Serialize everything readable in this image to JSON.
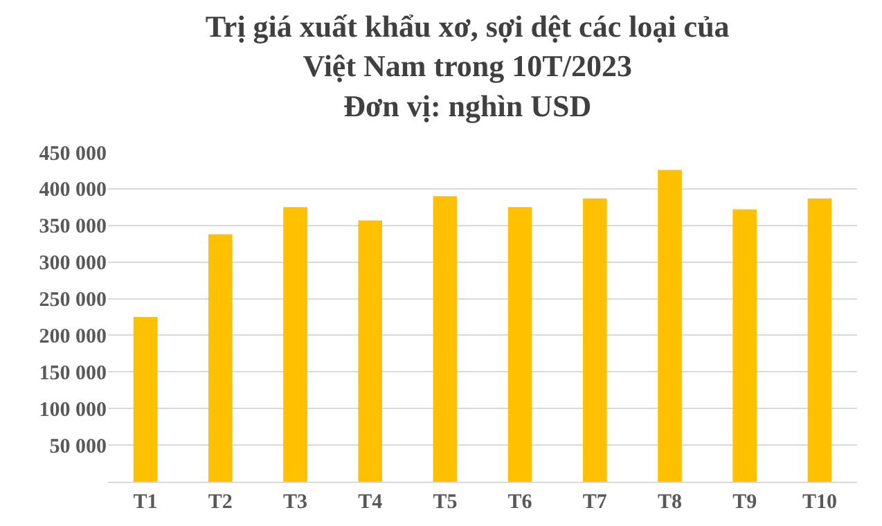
{
  "chart_data": {
    "type": "bar",
    "title": "Trị giá xuất khẩu xơ, sợi dệt các loại của\nViệt Nam trong 10T/2023\nĐơn vị: nghìn USD",
    "categories": [
      "T1",
      "T2",
      "T3",
      "T4",
      "T5",
      "T6",
      "T7",
      "T8",
      "T9",
      "T10"
    ],
    "values": [
      225000,
      338000,
      375000,
      357000,
      390000,
      375000,
      387000,
      426000,
      372000,
      387000
    ],
    "color": "#ffc000",
    "ylim": [
      0,
      450000
    ],
    "yticks": [
      {
        "value": 0,
        "label": null
      },
      {
        "value": 50000,
        "label": "50 000"
      },
      {
        "value": 100000,
        "label": "100 000"
      },
      {
        "value": 150000,
        "label": "150 000"
      },
      {
        "value": 200000,
        "label": "200 000"
      },
      {
        "value": 250000,
        "label": "250 000"
      },
      {
        "value": 300000,
        "label": "300 000"
      },
      {
        "value": 350000,
        "label": "350 000"
      },
      {
        "value": 400000,
        "label": "400 000"
      },
      {
        "value": 450000,
        "label": "450 000"
      }
    ],
    "grid": "y",
    "legend": false
  }
}
